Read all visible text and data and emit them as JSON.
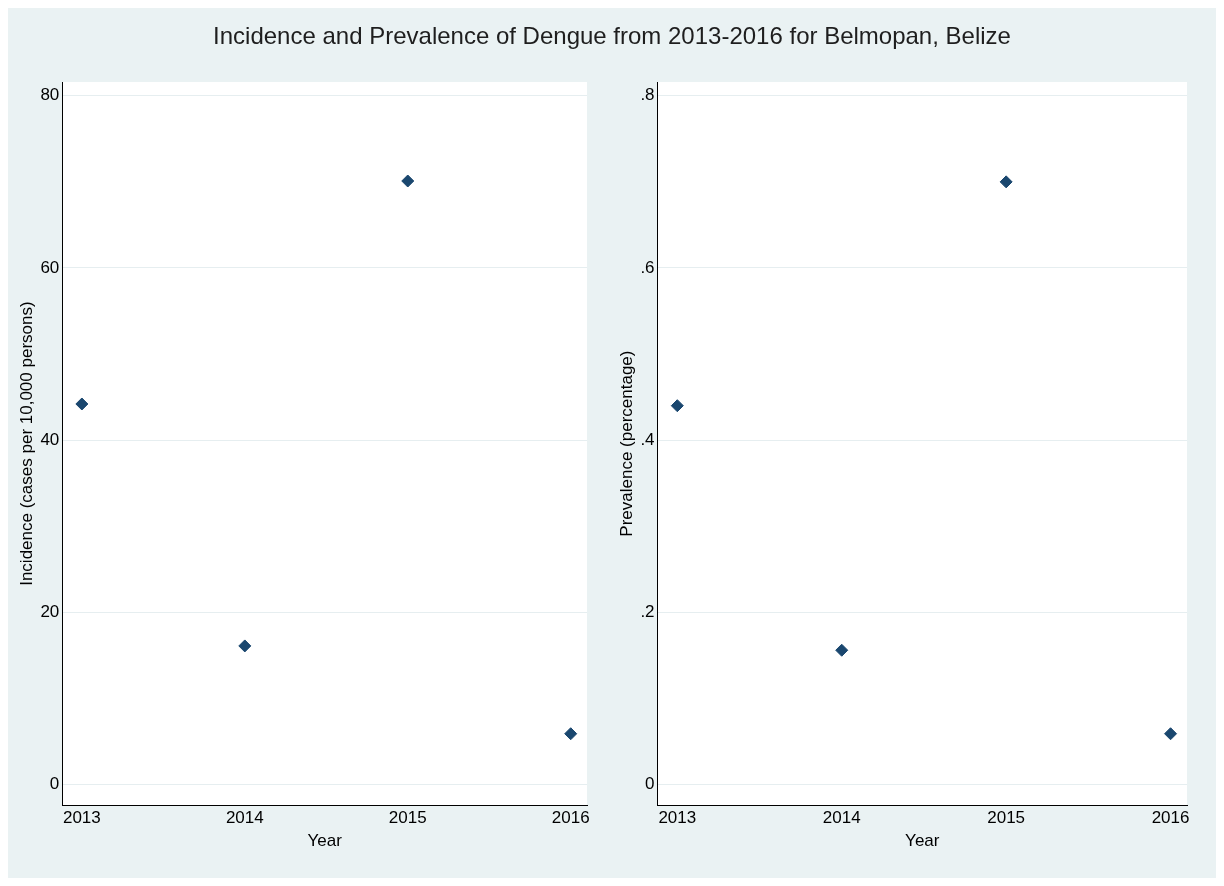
{
  "chart_data": [
    {
      "type": "scatter",
      "title": "Incidence and Prevalence of Dengue from 2013-2016 for Belmopan, Belize",
      "xlabel": "Year",
      "ylabel": "Incidence (cases per 10,000 persons)",
      "x": [
        2013,
        2014,
        2015,
        2016
      ],
      "series": [
        {
          "color": "#1a476f",
          "values": [
            44.2,
            16.1,
            70.1,
            5.9
          ]
        }
      ],
      "xlim": [
        2012.88,
        2016.1
      ],
      "xticks": [
        2013,
        2014,
        2015,
        2016
      ],
      "ylim": [
        -2.4,
        81.6
      ],
      "yticks": [
        0,
        20,
        40,
        60,
        80
      ],
      "grid": "y",
      "marker": "diamond",
      "legend": false
    },
    {
      "type": "scatter",
      "xlabel": "Year",
      "ylabel": "Prevalence (percentage)",
      "x": [
        2013,
        2014,
        2015,
        2016
      ],
      "series": [
        {
          "color": "#1a476f",
          "values": [
            0.44,
            0.156,
            0.7,
            0.059
          ]
        }
      ],
      "xlim": [
        2012.88,
        2016.1
      ],
      "xticks": [
        2013,
        2014,
        2015,
        2016
      ],
      "ylim": [
        -0.024,
        0.816
      ],
      "yticks": [
        {
          "value": 0,
          "label": "0"
        },
        {
          "value": 0.2,
          "label": ".2"
        },
        {
          "value": 0.4,
          "label": ".4"
        },
        {
          "value": 0.6,
          "label": ".6"
        },
        {
          "value": 0.8,
          "label": ".8"
        }
      ],
      "grid": "y",
      "marker": "diamond",
      "legend": false
    }
  ]
}
